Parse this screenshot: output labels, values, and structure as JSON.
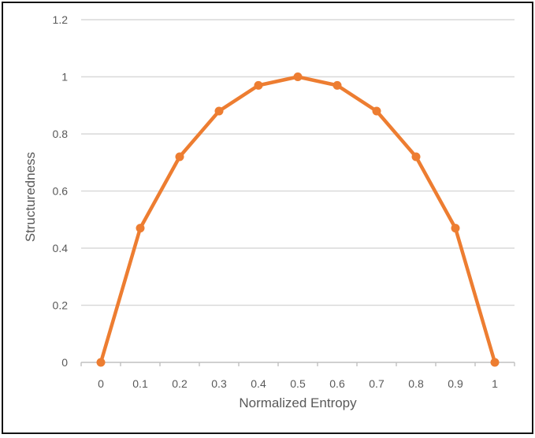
{
  "chart_data": {
    "type": "line",
    "title": "",
    "xlabel": "Normalized Entropy",
    "ylabel": "Structuredness",
    "x": [
      0,
      0.1,
      0.2,
      0.3,
      0.4,
      0.5,
      0.6,
      0.7,
      0.8,
      0.9,
      1
    ],
    "x_tick_labels": [
      "0",
      "0.1",
      "0.2",
      "0.3",
      "0.4",
      "0.5",
      "0.6",
      "0.7",
      "0.8",
      "0.9",
      "1"
    ],
    "series": [
      {
        "name": "Structuredness",
        "values": [
          0,
          0.47,
          0.72,
          0.88,
          0.97,
          1,
          0.97,
          0.88,
          0.72,
          0.47,
          0
        ]
      }
    ],
    "ylim": [
      0,
      1.2
    ],
    "y_ticks": [
      0,
      0.2,
      0.4,
      0.6,
      0.8,
      1,
      1.2
    ],
    "y_tick_labels": [
      "0",
      "0.2",
      "0.4",
      "0.6",
      "0.8",
      "1",
      "1.2"
    ],
    "grid": "horizontal",
    "legend": "none",
    "marker": "circle",
    "colors": {
      "series": "#ED7D31",
      "gridline": "#D9D9D9",
      "axis_line": "#C0C0C0",
      "label_text": "#595959",
      "frame_border": "#141414",
      "background": "#FFFFFF"
    }
  }
}
